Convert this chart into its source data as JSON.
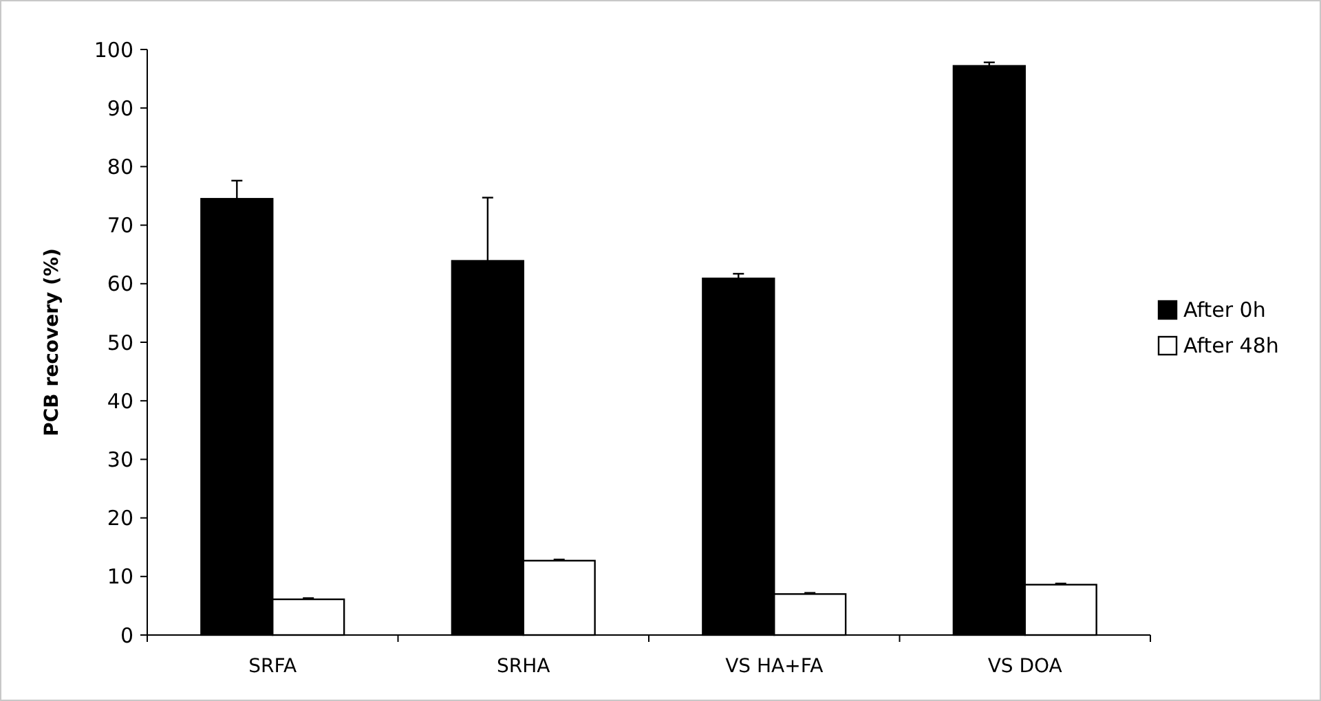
{
  "chart_data": {
    "type": "bar",
    "ylabel": "PCB recovery (%)",
    "categories": [
      "SRFA",
      "SRHA",
      "VS HA+FA",
      "VS DOA"
    ],
    "series": [
      {
        "name": "After 0h",
        "color": "#000000",
        "values": [
          74.5,
          63.9,
          60.9,
          97.2
        ],
        "errors": [
          3.1,
          10.8,
          0.8,
          0.6
        ]
      },
      {
        "name": "After 48h",
        "color": "#ffffff",
        "values": [
          6.1,
          12.7,
          7.0,
          8.6
        ],
        "errors": [
          0.2,
          0.2,
          0.2,
          0.2
        ]
      }
    ],
    "ylim": [
      0,
      100
    ],
    "yticks": [
      0,
      10,
      20,
      30,
      40,
      50,
      60,
      70,
      80,
      90,
      100
    ],
    "grid": false,
    "legend": "right"
  }
}
